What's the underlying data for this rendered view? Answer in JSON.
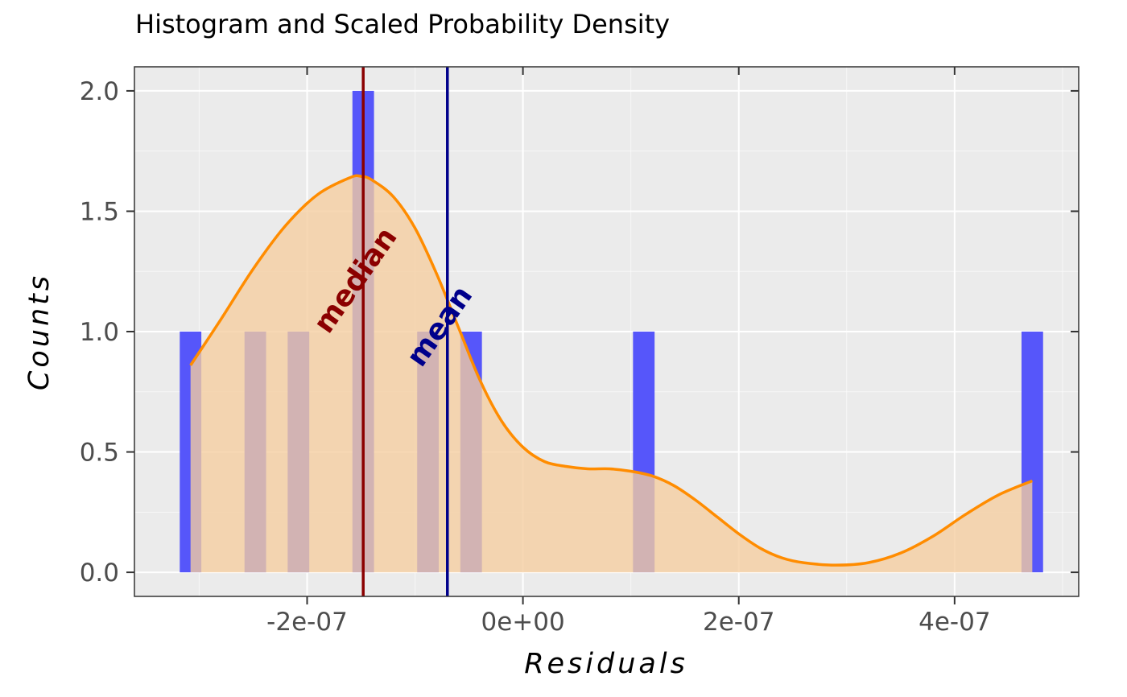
{
  "chart_data": {
    "type": "bar",
    "title": "Histogram and Scaled Probability Density",
    "xlabel": "Residuals",
    "ylabel": "Counts",
    "xlim": [
      -3.6e-07,
      5.15e-07
    ],
    "ylim": [
      -0.1,
      2.1
    ],
    "x_ticks": [
      -2e-07,
      0,
      2e-07,
      4e-07
    ],
    "x_tick_labels": [
      "-2e-07",
      "0e+00",
      "2e-07",
      "4e-07"
    ],
    "y_ticks": [
      0,
      0.5,
      1,
      1.5,
      2
    ],
    "y_tick_labels": [
      "0.0",
      "0.5",
      "1.0",
      "1.5",
      "2.0"
    ],
    "grid": true,
    "bar_width": 2e-08,
    "histogram": [
      {
        "x": -3.08e-07,
        "count": 1
      },
      {
        "x": -2.48e-07,
        "count": 1
      },
      {
        "x": -2.08e-07,
        "count": 1
      },
      {
        "x": -1.48e-07,
        "count": 2
      },
      {
        "x": -8.8e-08,
        "count": 1
      },
      {
        "x": -4.8e-08,
        "count": 1
      },
      {
        "x": 1.12e-07,
        "count": 1
      },
      {
        "x": 4.72e-07,
        "count": 1
      }
    ],
    "density": {
      "x": [
        -3.08e-07,
        -2.8e-07,
        -2.5e-07,
        -2.2e-07,
        -1.9e-07,
        -1.6e-07,
        -1.5e-07,
        -1.4e-07,
        -1.2e-07,
        -1e-07,
        -8e-08,
        -6e-08,
        -4e-08,
        -2e-08,
        0.0,
        2e-08,
        4e-08,
        6e-08,
        8e-08,
        1e-07,
        1.2e-07,
        1.4e-07,
        1.6e-07,
        1.8e-07,
        2e-07,
        2.2e-07,
        2.4e-07,
        2.6e-07,
        2.9e-07,
        3.2e-07,
        3.5e-07,
        3.8e-07,
        4.1e-07,
        4.4e-07,
        4.72e-07
      ],
      "y": [
        0.86,
        1.05,
        1.26,
        1.44,
        1.57,
        1.64,
        1.645,
        1.63,
        1.56,
        1.43,
        1.24,
        1.02,
        0.8,
        0.63,
        0.52,
        0.46,
        0.44,
        0.43,
        0.43,
        0.42,
        0.4,
        0.36,
        0.3,
        0.23,
        0.16,
        0.1,
        0.06,
        0.04,
        0.03,
        0.04,
        0.08,
        0.15,
        0.24,
        0.32,
        0.38
      ]
    },
    "vlines": [
      {
        "name": "median",
        "x": -1.48e-07,
        "color": "#8b0000"
      },
      {
        "name": "mean",
        "x": -7e-08,
        "color": "#00008b"
      }
    ],
    "colors": {
      "bars": "#5656fa",
      "density_line": "#ff8c00",
      "density_fill": "#f5cd9f",
      "panel": "#ebebeb",
      "grid": "#ffffff"
    }
  }
}
